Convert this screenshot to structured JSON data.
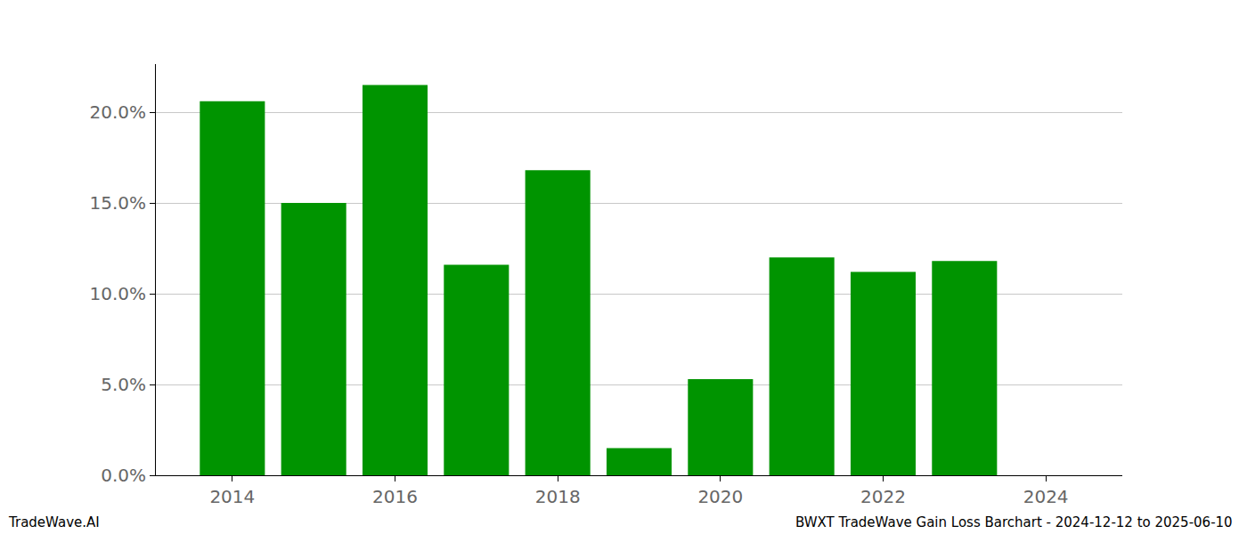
{
  "chart_data": {
    "type": "bar",
    "x": [
      2014,
      2015,
      2016,
      2017,
      2018,
      2019,
      2020,
      2021,
      2022,
      2023,
      2024
    ],
    "values": [
      20.6,
      15.0,
      21.5,
      11.6,
      16.8,
      1.5,
      5.3,
      12.0,
      11.2,
      11.8,
      0
    ],
    "color": "#009400",
    "xlim": [
      2013.06,
      2024.94
    ],
    "xticks": [
      2014,
      2016,
      2018,
      2020,
      2022,
      2024
    ],
    "ylim": [
      0,
      22.65
    ],
    "yticks": [
      {
        "value": 0,
        "label": "0.0%"
      },
      {
        "value": 5,
        "label": "5.0%"
      },
      {
        "value": 10,
        "label": "10.0%"
      },
      {
        "value": 15,
        "label": "15.0%"
      },
      {
        "value": 20,
        "label": "20.0%"
      }
    ],
    "grid": true,
    "annotations": [
      "TradeWave.AI",
      "BWXT TradeWave Gain Loss Barchart - 2024-12-12 to 2025-06-10"
    ]
  }
}
